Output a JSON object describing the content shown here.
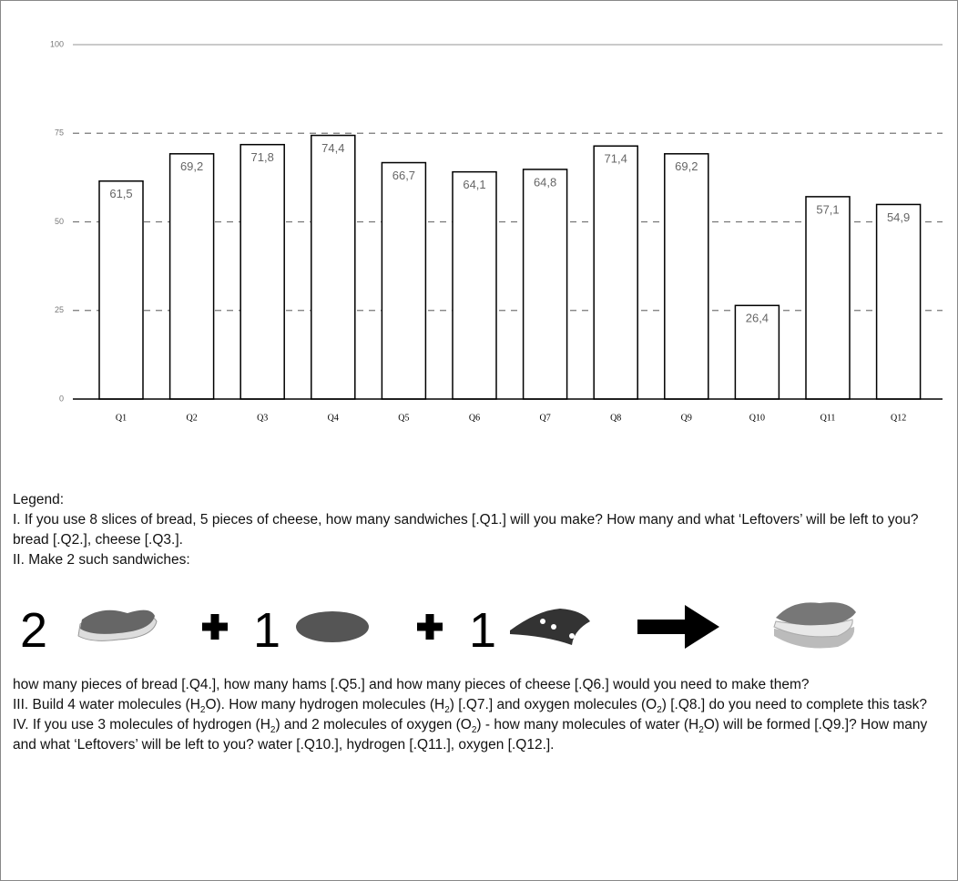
{
  "chart_data": {
    "type": "bar",
    "categories": [
      "Q1",
      "Q2",
      "Q3",
      "Q4",
      "Q5",
      "Q6",
      "Q7",
      "Q8",
      "Q9",
      "Q10",
      "Q11",
      "Q12"
    ],
    "values": [
      61.5,
      69.2,
      71.8,
      74.4,
      66.7,
      64.1,
      64.8,
      71.4,
      69.2,
      26.4,
      57.1,
      54.9
    ],
    "value_labels": [
      "61,5",
      "69,2",
      "71,8",
      "74,4",
      "66,7",
      "64,1",
      "64,8",
      "71,4",
      "69,2",
      "26,4",
      "57,1",
      "54,9"
    ],
    "color": "#ffffff",
    "ylim": [
      0,
      100
    ],
    "yticks": [
      0,
      25,
      50,
      75,
      100
    ],
    "grid": true
  },
  "legend": {
    "heading": "Legend:",
    "intro": [
      [
        "I. If you use 8 slices of bread, 5 pieces of cheese, how many sandwiches [.Q1.] will you make? How many and what ‘Leftovers’ will be left to you? bread [.Q2.], cheese [.Q3.]."
      ],
      [
        "II. Make 2 such sandwiches:"
      ]
    ],
    "equation_numbers": [
      "2",
      "1",
      "1"
    ],
    "questions": [
      [
        "how many pieces of bread [.Q4.], how many hams [.Q5.] and how many pieces of cheese [.Q6.] would you need to make them?"
      ],
      [
        "III. Build 4 water molecules (H",
        {
          "sub": "2"
        },
        "O). How many hydrogen molecules (H",
        {
          "sub": "2"
        },
        ") [.Q7.] and oxygen molecules (O",
        {
          "sub": "2"
        },
        ") [.Q8.] do you need to complete this task?"
      ],
      [
        "IV. If you use 3 molecules of hydrogen (H",
        {
          "sub": "2"
        },
        ") and 2 molecules of oxygen (O",
        {
          "sub": "2"
        },
        ") - how many molecules of water (H",
        {
          "sub": "2"
        },
        "O) will be formed [.Q9.]? How many and what ‘Leftovers’ will be left to you? water [.Q10.], hydrogen [.Q11.], oxygen [.Q12.]."
      ]
    ]
  }
}
